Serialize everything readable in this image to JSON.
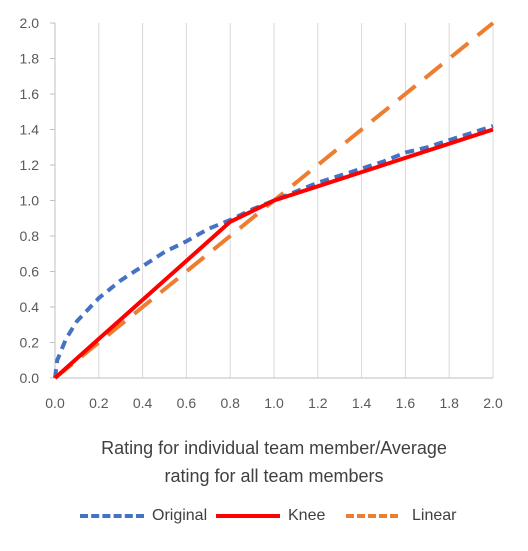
{
  "chart_data": {
    "type": "line",
    "xlabel_lines": [
      "Rating for individual team member/Average",
      "rating for all team members"
    ],
    "ylabel": "",
    "xlim": [
      0,
      2
    ],
    "ylim": [
      0,
      2
    ],
    "x_ticks": [
      "0.0",
      "0.2",
      "0.4",
      "0.6",
      "0.8",
      "1.0",
      "1.2",
      "1.4",
      "1.6",
      "1.8",
      "2.0"
    ],
    "y_ticks": [
      "0.0",
      "0.2",
      "0.4",
      "0.6",
      "0.8",
      "1.0",
      "1.2",
      "1.4",
      "1.6",
      "1.8",
      "2.0"
    ],
    "grid": "vertical",
    "legend_position": "bottom",
    "series": [
      {
        "name": "Original",
        "color": "#4472C4",
        "style": "dashed",
        "x": [
          0.0,
          0.01,
          0.05,
          0.1,
          0.2,
          0.3,
          0.4,
          0.5,
          0.6,
          0.7,
          0.8,
          0.9,
          1.0,
          1.1,
          1.2,
          1.3,
          1.4,
          1.5,
          1.6,
          1.7,
          1.8,
          1.9,
          2.0
        ],
        "y": [
          0.0,
          0.1,
          0.22,
          0.32,
          0.45,
          0.55,
          0.63,
          0.71,
          0.77,
          0.84,
          0.89,
          0.95,
          1.0,
          1.05,
          1.1,
          1.14,
          1.18,
          1.22,
          1.27,
          1.3,
          1.34,
          1.38,
          1.42
        ]
      },
      {
        "name": "Knee",
        "color": "#FF0000",
        "style": "solid",
        "x": [
          0.0,
          0.2,
          0.4,
          0.6,
          0.8,
          0.9,
          1.0,
          1.2,
          1.4,
          1.6,
          1.8,
          2.0
        ],
        "y": [
          0.0,
          0.22,
          0.44,
          0.66,
          0.88,
          0.94,
          1.0,
          1.08,
          1.16,
          1.24,
          1.32,
          1.4
        ]
      },
      {
        "name": "Linear",
        "color": "#ED7D31",
        "style": "dashed-long",
        "x": [
          0.0,
          2.0
        ],
        "y": [
          0.0,
          2.0
        ]
      }
    ]
  }
}
